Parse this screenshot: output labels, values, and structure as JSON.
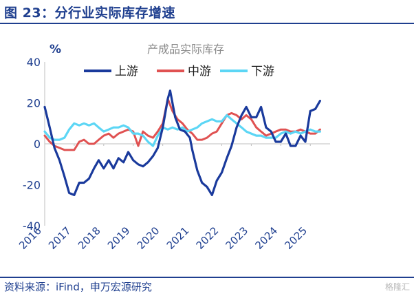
{
  "figure": {
    "title": "图 23：分行业实际库存增速",
    "source": "资料来源：iFind，申万宏源研究",
    "watermark": "格隆汇"
  },
  "chart_data": {
    "type": "line",
    "title": "产成品实际库存",
    "ylabel": "%",
    "ylim": [
      -40,
      40
    ],
    "yticks": [
      -40,
      -20,
      0,
      20,
      40
    ],
    "xticks": [
      "2016",
      "2017",
      "2018",
      "2019",
      "2020",
      "2021",
      "2022",
      "2023",
      "2024",
      "2025"
    ],
    "xlim": [
      2016,
      2025.67
    ],
    "grid": false,
    "legend_position": "top",
    "colors": {
      "上游": "#1a3a9c",
      "中游": "#e05252",
      "下游": "#5cd6f5"
    },
    "series": [
      {
        "name": "上游",
        "points": [
          [
            2016.0,
            18
          ],
          [
            2016.17,
            8
          ],
          [
            2016.33,
            -2
          ],
          [
            2016.5,
            -8
          ],
          [
            2016.67,
            -16
          ],
          [
            2016.83,
            -24
          ],
          [
            2017.0,
            -25
          ],
          [
            2017.17,
            -19
          ],
          [
            2017.33,
            -19
          ],
          [
            2017.5,
            -17
          ],
          [
            2017.67,
            -12
          ],
          [
            2017.83,
            -8
          ],
          [
            2018.0,
            -12
          ],
          [
            2018.17,
            -8
          ],
          [
            2018.33,
            -12
          ],
          [
            2018.5,
            -7
          ],
          [
            2018.67,
            -9
          ],
          [
            2018.83,
            -4
          ],
          [
            2019.0,
            -8
          ],
          [
            2019.17,
            -10
          ],
          [
            2019.33,
            -11
          ],
          [
            2019.5,
            -9
          ],
          [
            2019.67,
            -6
          ],
          [
            2019.83,
            -2
          ],
          [
            2020.0,
            8
          ],
          [
            2020.17,
            22
          ],
          [
            2020.25,
            26
          ],
          [
            2020.42,
            13
          ],
          [
            2020.58,
            7
          ],
          [
            2020.75,
            6
          ],
          [
            2020.92,
            3
          ],
          [
            2021.0,
            -3
          ],
          [
            2021.17,
            -13
          ],
          [
            2021.33,
            -19
          ],
          [
            2021.5,
            -21
          ],
          [
            2021.67,
            -25
          ],
          [
            2021.83,
            -18
          ],
          [
            2022.0,
            -14
          ],
          [
            2022.17,
            -7
          ],
          [
            2022.33,
            -1
          ],
          [
            2022.5,
            8
          ],
          [
            2022.67,
            14
          ],
          [
            2022.83,
            18
          ],
          [
            2023.0,
            13
          ],
          [
            2023.17,
            13
          ],
          [
            2023.33,
            18
          ],
          [
            2023.5,
            8
          ],
          [
            2023.67,
            6
          ],
          [
            2023.83,
            1
          ],
          [
            2024.0,
            1
          ],
          [
            2024.17,
            5
          ],
          [
            2024.33,
            -1
          ],
          [
            2024.5,
            -1
          ],
          [
            2024.67,
            4
          ],
          [
            2024.83,
            1
          ],
          [
            2025.0,
            16
          ],
          [
            2025.17,
            17
          ],
          [
            2025.33,
            21
          ]
        ]
      },
      {
        "name": "中游",
        "points": [
          [
            2016.0,
            4
          ],
          [
            2016.17,
            1
          ],
          [
            2016.33,
            -1
          ],
          [
            2016.5,
            -2
          ],
          [
            2016.67,
            -3
          ],
          [
            2016.83,
            -3
          ],
          [
            2017.0,
            -3
          ],
          [
            2017.17,
            1
          ],
          [
            2017.33,
            2
          ],
          [
            2017.5,
            0
          ],
          [
            2017.67,
            0
          ],
          [
            2017.83,
            2
          ],
          [
            2018.0,
            4
          ],
          [
            2018.17,
            5
          ],
          [
            2018.33,
            3
          ],
          [
            2018.5,
            5
          ],
          [
            2018.67,
            6
          ],
          [
            2018.83,
            7
          ],
          [
            2019.0,
            6
          ],
          [
            2019.17,
            -1
          ],
          [
            2019.33,
            6
          ],
          [
            2019.5,
            4
          ],
          [
            2019.67,
            3
          ],
          [
            2019.83,
            6
          ],
          [
            2020.0,
            10
          ],
          [
            2020.17,
            22
          ],
          [
            2020.33,
            16
          ],
          [
            2020.5,
            12
          ],
          [
            2020.67,
            10
          ],
          [
            2020.83,
            7
          ],
          [
            2021.0,
            5
          ],
          [
            2021.17,
            2
          ],
          [
            2021.33,
            2
          ],
          [
            2021.5,
            3
          ],
          [
            2021.67,
            5
          ],
          [
            2021.83,
            6
          ],
          [
            2022.0,
            10
          ],
          [
            2022.17,
            14
          ],
          [
            2022.33,
            15
          ],
          [
            2022.5,
            14
          ],
          [
            2022.67,
            12
          ],
          [
            2022.83,
            14
          ],
          [
            2023.0,
            12
          ],
          [
            2023.17,
            8
          ],
          [
            2023.33,
            6
          ],
          [
            2023.5,
            4
          ],
          [
            2023.67,
            5
          ],
          [
            2023.83,
            6
          ],
          [
            2024.0,
            7
          ],
          [
            2024.17,
            7
          ],
          [
            2024.33,
            6
          ],
          [
            2024.5,
            6
          ],
          [
            2024.67,
            7
          ],
          [
            2024.83,
            6
          ],
          [
            2025.0,
            5
          ],
          [
            2025.17,
            5
          ],
          [
            2025.33,
            7
          ]
        ]
      },
      {
        "name": "下游",
        "points": [
          [
            2016.0,
            6
          ],
          [
            2016.17,
            3
          ],
          [
            2016.33,
            2
          ],
          [
            2016.5,
            2
          ],
          [
            2016.67,
            3
          ],
          [
            2016.83,
            7
          ],
          [
            2017.0,
            10
          ],
          [
            2017.17,
            9
          ],
          [
            2017.33,
            10
          ],
          [
            2017.5,
            9
          ],
          [
            2017.67,
            10
          ],
          [
            2017.83,
            8
          ],
          [
            2018.0,
            6
          ],
          [
            2018.17,
            7
          ],
          [
            2018.33,
            8
          ],
          [
            2018.5,
            8
          ],
          [
            2018.67,
            9
          ],
          [
            2018.83,
            8
          ],
          [
            2019.0,
            5
          ],
          [
            2019.17,
            5
          ],
          [
            2019.33,
            4
          ],
          [
            2019.5,
            1
          ],
          [
            2019.67,
            -1
          ],
          [
            2019.83,
            4
          ],
          [
            2020.0,
            8
          ],
          [
            2020.17,
            7
          ],
          [
            2020.33,
            8
          ],
          [
            2020.5,
            7
          ],
          [
            2020.67,
            8
          ],
          [
            2020.83,
            6
          ],
          [
            2021.0,
            7
          ],
          [
            2021.17,
            8
          ],
          [
            2021.33,
            10
          ],
          [
            2021.5,
            11
          ],
          [
            2021.67,
            12
          ],
          [
            2021.83,
            11
          ],
          [
            2022.0,
            11
          ],
          [
            2022.17,
            14
          ],
          [
            2022.33,
            12
          ],
          [
            2022.5,
            10
          ],
          [
            2022.67,
            8
          ],
          [
            2022.83,
            6
          ],
          [
            2023.0,
            5
          ],
          [
            2023.17,
            4
          ],
          [
            2023.33,
            4
          ],
          [
            2023.5,
            3
          ],
          [
            2023.67,
            3
          ],
          [
            2023.83,
            3
          ],
          [
            2024.0,
            5
          ],
          [
            2024.17,
            6
          ],
          [
            2024.33,
            5
          ],
          [
            2024.5,
            6
          ],
          [
            2024.67,
            5
          ],
          [
            2024.83,
            6
          ],
          [
            2025.0,
            7
          ],
          [
            2025.17,
            6
          ],
          [
            2025.33,
            6
          ]
        ]
      }
    ]
  }
}
